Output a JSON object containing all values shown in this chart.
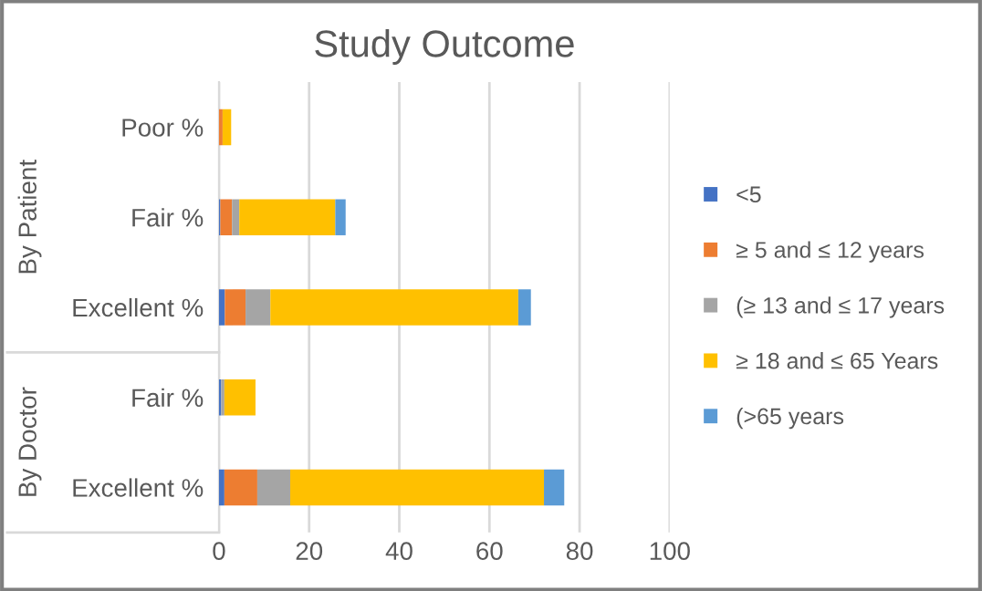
{
  "chart_data": {
    "type": "bar",
    "orientation": "horizontal",
    "stacked": true,
    "title": "Study Outcome",
    "categories": [
      "Poor %",
      "Fair %",
      "Excellent %",
      "Fair %",
      "Excellent %"
    ],
    "series": [
      {
        "name": "<5",
        "color": "#4472c4",
        "values": [
          0,
          0.3,
          1.3,
          0.5,
          1.2
        ]
      },
      {
        "name": "≥ 5 and ≤ 12 years",
        "color": "#ed7d31",
        "values": [
          0.8,
          2.6,
          4.6,
          0,
          7.3
        ]
      },
      {
        "name": "(≥ 13 and ≤ 17 years",
        "color": "#a5a5a5",
        "values": [
          0,
          1.6,
          5.5,
          0.7,
          7.3
        ]
      },
      {
        "name": "≥ 18 and ≤ 65 Years",
        "color": "#ffc000",
        "values": [
          1.9,
          21.3,
          55,
          6.9,
          56.3
        ]
      },
      {
        "name": "(>65 years",
        "color": "#5b9bd5",
        "values": [
          0,
          2.3,
          2.8,
          0,
          4.5
        ]
      }
    ],
    "xlim": [
      0,
      100
    ],
    "xticks": [
      0,
      20,
      40,
      60,
      80,
      100
    ],
    "grid": "x",
    "legend": "right",
    "annotations": [
      "By Patient",
      "By Doctor"
    ]
  }
}
